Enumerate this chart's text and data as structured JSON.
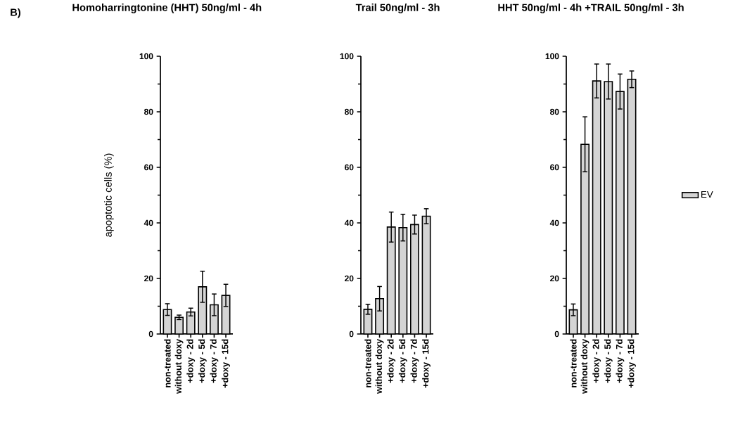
{
  "chart_data": [
    {
      "type": "bar",
      "title": "Homoharringtonine (HHT) 50ng/ml - 4h",
      "ylabel": "apoptotic cells (%)",
      "annotations": [
        "B)"
      ],
      "categories": [
        "non-treated",
        "without doxy",
        "+doxy - 2d",
        "+doxy - 5d",
        "+doxy - 7d",
        "+doxy - 15d"
      ],
      "series": [
        {
          "color": "#d4d4d4",
          "values": [
            8.8,
            6.0,
            7.9,
            17.0,
            10.5,
            13.9
          ],
          "errors": [
            2.1,
            0.8,
            1.4,
            5.6,
            3.9,
            4.0
          ]
        }
      ],
      "ylim": [
        0,
        100
      ],
      "yticks": [
        0,
        {
          "value": 10,
          "label": null
        },
        20,
        {
          "value": 30,
          "label": null
        },
        40,
        {
          "value": 50,
          "label": null
        },
        60,
        {
          "value": 70,
          "label": null
        },
        80,
        {
          "value": 90,
          "label": null
        },
        100
      ],
      "grid": false,
      "legend": false
    },
    {
      "type": "bar",
      "title": "Trail 50ng/ml - 3h",
      "categories": [
        "non-treated",
        "without doxy",
        "+doxy - 2d",
        "+doxy - 5d",
        "+doxy - 7d",
        "+doxy - 15d"
      ],
      "series": [
        {
          "color": "#d4d4d4",
          "values": [
            8.9,
            12.7,
            38.5,
            38.3,
            39.4,
            42.4
          ],
          "errors": [
            1.8,
            4.4,
            5.4,
            4.8,
            3.4,
            2.7
          ]
        }
      ],
      "ylim": [
        0,
        100
      ],
      "yticks": [
        0,
        {
          "value": 10,
          "label": null
        },
        20,
        {
          "value": 30,
          "label": null
        },
        40,
        {
          "value": 50,
          "label": null
        },
        60,
        {
          "value": 70,
          "label": null
        },
        80,
        {
          "value": 90,
          "label": null
        },
        100
      ],
      "grid": false,
      "legend": false
    },
    {
      "type": "bar",
      "title": "HHT 50ng/ml - 4h +TRAIL 50ng/ml - 3h",
      "categories": [
        "non-treated",
        "without doxy",
        "+doxy - 2d",
        "+doxy - 5d",
        "+doxy - 7d",
        "+doxy - 15d"
      ],
      "series": [
        {
          "name": "EV",
          "color": "#d4d4d4",
          "values": [
            8.7,
            68.3,
            91.1,
            90.9,
            87.3,
            91.7
          ],
          "errors": [
            2.1,
            9.9,
            6.1,
            6.3,
            6.3,
            3.0
          ]
        }
      ],
      "ylim": [
        0,
        100
      ],
      "yticks": [
        0,
        {
          "value": 10,
          "label": null
        },
        20,
        {
          "value": 30,
          "label": null
        },
        40,
        {
          "value": 50,
          "label": null
        },
        60,
        {
          "value": 70,
          "label": null
        },
        80,
        {
          "value": 90,
          "label": null
        },
        100
      ],
      "grid": false,
      "legend": "right"
    }
  ]
}
